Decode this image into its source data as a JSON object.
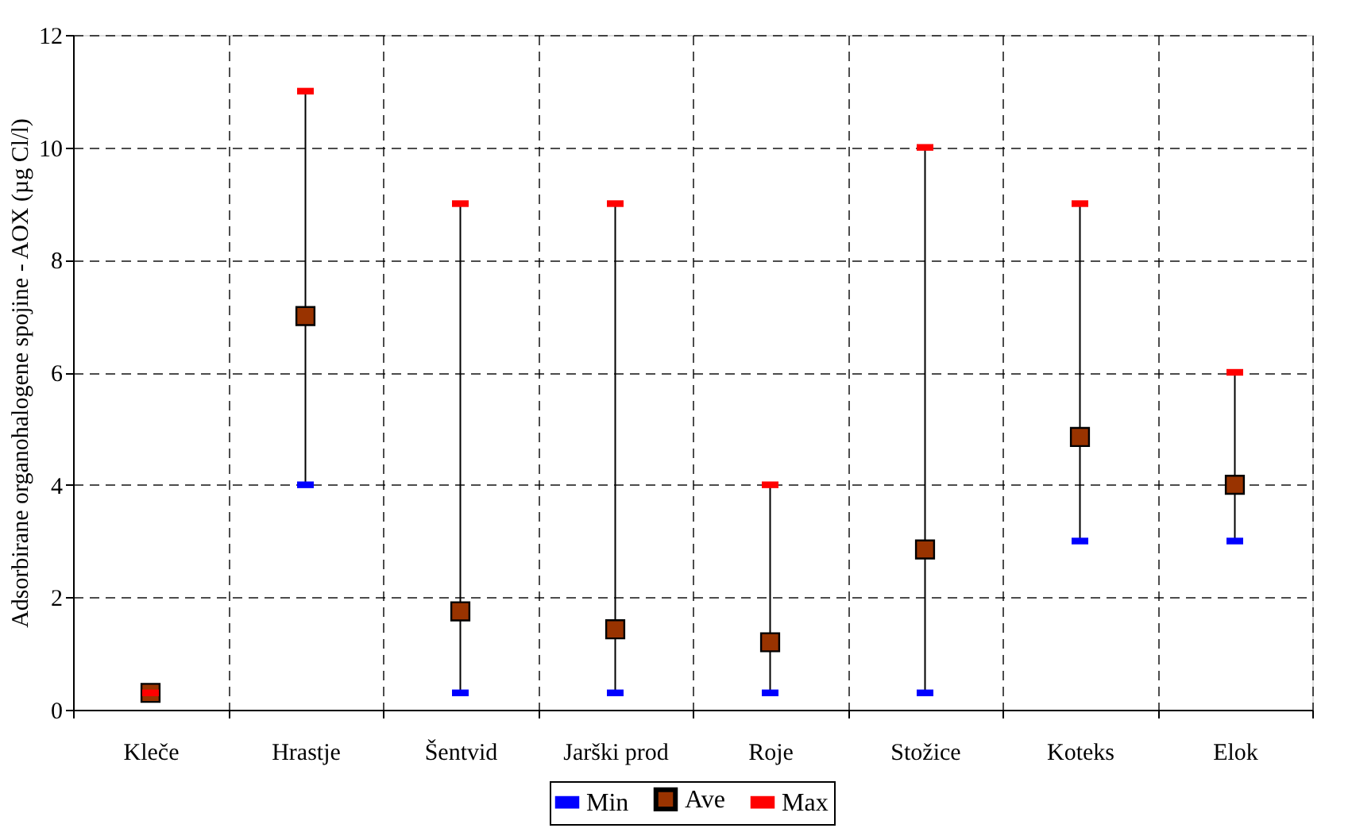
{
  "chart_data": {
    "type": "scatter",
    "ylabel": "Adsorbirane organohalogene spojine - AOX (µg Cl/l)",
    "categories": [
      "Kleče",
      "Hrastje",
      "Šentvid",
      "Jarški prod",
      "Roje",
      "Stožice",
      "Koteks",
      "Elok"
    ],
    "series": [
      {
        "name": "Min",
        "color": "#0000ff",
        "values": [
          null,
          4,
          0.3,
          0.3,
          0.3,
          0.3,
          3,
          3
        ]
      },
      {
        "name": "Ave",
        "color": "#993300",
        "marker": "square",
        "values": [
          0.3,
          7.0,
          1.75,
          1.43,
          1.2,
          2.85,
          4.85,
          4
        ]
      },
      {
        "name": "Max",
        "color": "#ff0000",
        "values": [
          0.3,
          11,
          9,
          9,
          4,
          10,
          9,
          6
        ]
      }
    ],
    "ylim": [
      0,
      12
    ],
    "yticks": [
      0,
      2,
      4,
      6,
      8,
      10,
      12
    ],
    "grid": true,
    "legend": "bottom"
  }
}
